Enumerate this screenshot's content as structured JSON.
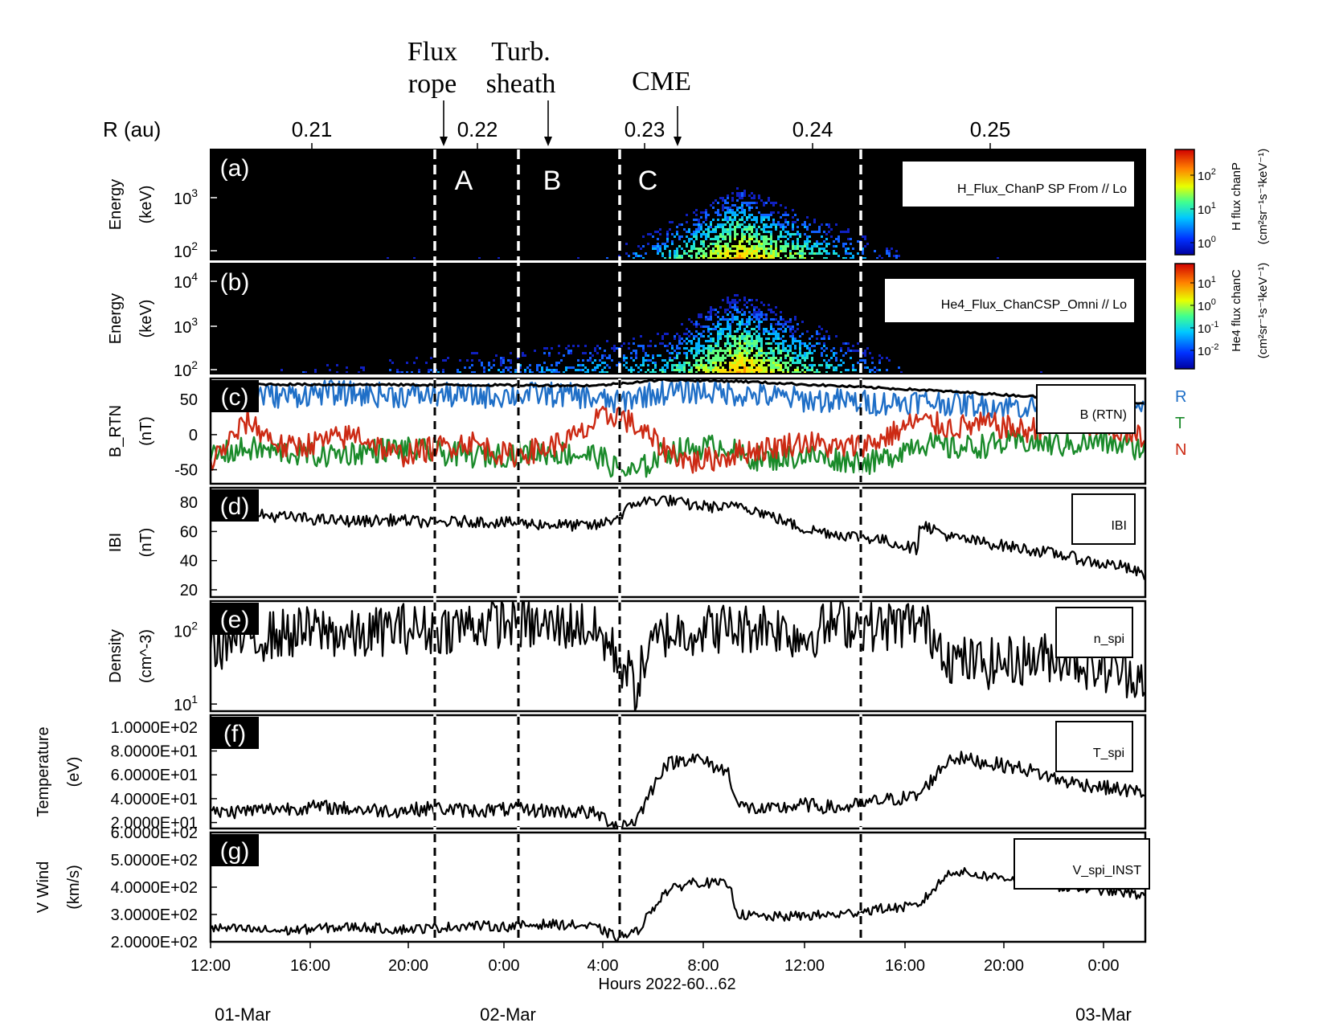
{
  "figure": {
    "r_axis_label": "R (au)",
    "r_ticks": [
      "0.21",
      "0.22",
      "0.23",
      "0.24",
      "0.25"
    ],
    "events": [
      {
        "label": [
          "Flux",
          "rope"
        ],
        "hour": 22.3
      },
      {
        "label": [
          "Turb.",
          "sheath"
        ],
        "hour": 25.3
      },
      {
        "label": [
          "CME"
        ],
        "hour": 30.0
      }
    ],
    "boundaries_hours": [
      20.9,
      24.5,
      28.5,
      38.2
    ],
    "regions": [
      {
        "label": "A",
        "hour": 22.1
      },
      {
        "label": "B",
        "hour": 25.0
      },
      {
        "label": "C",
        "hour": 28.8
      }
    ],
    "x_ticks": [
      "12:00",
      "16:00",
      "20:00",
      "0:00",
      "4:00",
      "8:00",
      "12:00",
      "16:00",
      "20:00",
      "0:00"
    ],
    "x_label": "Hours 2022-60...62",
    "dates": [
      "01-Mar",
      "02-Mar",
      "03-Mar"
    ],
    "panels": {
      "a": {
        "tag": "(a)",
        "ylabel": [
          "Energy",
          "(keV)"
        ],
        "legend": "H_Flux_ChanP SP From // Lo",
        "colorbar_label": "H flux chanP",
        "colorbar_units": "(cm²sr⁻¹s⁻¹keV⁻¹)",
        "y_ticks": [
          "10",
          "10"
        ],
        "y_exps": [
          "3",
          "2"
        ],
        "cb_ticks": [
          "10",
          "10",
          "10"
        ],
        "cb_exps": [
          "2",
          "1",
          "0"
        ]
      },
      "b": {
        "tag": "(b)",
        "ylabel": [
          "Energy",
          "(keV)"
        ],
        "legend": "He4_Flux_ChanCSP_Omni // Lo",
        "colorbar_label": "He4 flux chanC",
        "colorbar_units": "(cm²sr⁻¹s⁻¹keV⁻¹)",
        "y_ticks": [
          "10",
          "10",
          "10"
        ],
        "y_exps": [
          "4",
          "3",
          "2"
        ],
        "cb_ticks": [
          "10",
          "10",
          "10",
          "10"
        ],
        "cb_exps": [
          "1",
          "0",
          "-1",
          "-2"
        ]
      },
      "c": {
        "tag": "(c)",
        "ylabel": [
          "B_RTN",
          "(nT)"
        ],
        "legend": "B (RTN)",
        "y_ticks": [
          "50",
          "0",
          "-50"
        ],
        "components": [
          "R",
          "T",
          "N"
        ]
      },
      "d": {
        "tag": "(d)",
        "ylabel": [
          "IBI",
          "(nT)"
        ],
        "legend": "IBI",
        "y_ticks": [
          "80",
          "60",
          "40",
          "20"
        ]
      },
      "e": {
        "tag": "(e)",
        "ylabel": [
          "Density",
          "(cm^-3)"
        ],
        "legend": "n_spi",
        "y_ticks": [
          "10",
          "10"
        ],
        "y_exps": [
          "2",
          "1"
        ]
      },
      "f": {
        "tag": "(f)",
        "ylabel": [
          "Temperature",
          "(eV)"
        ],
        "legend": "T_spi",
        "y_ticks": [
          "1.0000E+02",
          "8.0000E+01",
          "6.0000E+01",
          "4.0000E+01",
          "2.0000E+01"
        ]
      },
      "g": {
        "tag": "(g)",
        "ylabel": [
          "V Wind",
          "(km/s)"
        ],
        "legend": "V_spi_INST",
        "y_ticks": [
          "6.0000E+02",
          "5.0000E+02",
          "4.0000E+02",
          "3.0000E+02",
          "2.0000E+02"
        ]
      }
    },
    "colors": {
      "R": "#1f6fc7",
      "T": "#1a8a2a",
      "N": "#cc2a14"
    }
  },
  "chart_data": [
    {
      "type": "heatmap",
      "panel": "a",
      "ylabel": "Energy (keV)",
      "colorbar": "H flux chanP",
      "description_points_hours": [
        0,
        20.9,
        24.5,
        28.5,
        38.2,
        50.5
      ],
      "relative_intensity": [
        0.0,
        0.05,
        0.45,
        0.9,
        0.05,
        0.0
      ]
    },
    {
      "type": "heatmap",
      "panel": "b",
      "ylabel": "Energy (keV)",
      "colorbar": "He4 flux chanC",
      "description_points_hours": [
        0,
        20.9,
        24.5,
        28.5,
        38.2,
        50.5
      ],
      "relative_intensity": [
        0.0,
        0.35,
        0.45,
        0.9,
        0.05,
        0.0
      ]
    },
    {
      "type": "line",
      "panel": "c",
      "ylabel": "B_RTN (nT)",
      "ylim": [
        -70,
        80
      ],
      "x_hours": [
        0,
        2,
        4,
        6,
        8,
        10,
        12,
        14,
        16,
        18,
        20,
        20.9,
        22,
        23,
        24.5,
        26,
        28,
        28.5,
        30,
        32,
        34,
        36,
        38.2,
        40,
        42,
        44,
        46,
        48,
        50.5
      ],
      "series": [
        {
          "name": "R",
          "values": [
            55,
            58,
            55,
            60,
            58,
            56,
            57,
            55,
            56,
            58,
            55,
            50,
            45,
            55,
            60,
            62,
            60,
            58,
            55,
            50,
            48,
            45,
            48,
            45,
            42,
            40,
            38,
            38,
            35
          ]
        },
        {
          "name": "T",
          "values": [
            -30,
            -20,
            -25,
            -30,
            -25,
            -20,
            -25,
            -30,
            -28,
            -25,
            -28,
            -30,
            -50,
            -55,
            -25,
            -20,
            -15,
            -30,
            -35,
            -30,
            -35,
            -40,
            -10,
            -20,
            -15,
            -10,
            -15,
            -10,
            -20
          ]
        },
        {
          "name": "N",
          "values": [
            -40,
            20,
            -20,
            -10,
            0,
            -30,
            -20,
            -10,
            -30,
            -20,
            0,
            20,
            30,
            10,
            -20,
            -40,
            -30,
            -25,
            -20,
            -10,
            -20,
            -10,
            20,
            10,
            15,
            5,
            20,
            10,
            -5
          ]
        }
      ]
    },
    {
      "type": "line",
      "panel": "d",
      "ylabel": "IBI (nT)",
      "ylim": [
        15,
        90
      ],
      "x_hours": [
        0,
        2,
        4,
        6,
        8,
        10,
        12,
        14,
        16,
        18,
        20,
        20.9,
        22,
        23,
        24.5,
        26,
        28,
        28.5,
        30,
        32,
        34,
        36,
        38.2,
        38.3,
        40,
        42,
        44,
        46,
        48,
        49,
        50.5
      ],
      "series": [
        {
          "name": "IBI",
          "values": [
            74,
            72,
            70,
            68,
            67,
            68,
            66,
            67,
            66,
            65,
            64,
            64,
            70,
            80,
            82,
            78,
            76,
            79,
            72,
            62,
            58,
            55,
            48,
            66,
            56,
            52,
            48,
            44,
            38,
            37,
            30
          ]
        }
      ]
    },
    {
      "type": "line",
      "panel": "e",
      "ylabel": "Density (cm^-3)",
      "log": true,
      "ylim": [
        8,
        250
      ],
      "x_hours": [
        0,
        2,
        4,
        6,
        8,
        10,
        12,
        14,
        16,
        18,
        20,
        20.9,
        22,
        23,
        24.5,
        26,
        28,
        28.5,
        30,
        32,
        34,
        36,
        38.2,
        40,
        42,
        44,
        46,
        48,
        50.5
      ],
      "series": [
        {
          "name": "n_spi",
          "values": [
            60,
            80,
            90,
            100,
            80,
            110,
            100,
            120,
            130,
            110,
            120,
            90,
            40,
            15,
            90,
            100,
            110,
            100,
            120,
            80,
            130,
            110,
            130,
            40,
            35,
            40,
            45,
            30,
            25
          ]
        }
      ]
    },
    {
      "type": "line",
      "panel": "f",
      "ylabel": "Temperature (eV)",
      "ylim": [
        15,
        110
      ],
      "x_hours": [
        0,
        2,
        4,
        6,
        8,
        10,
        12,
        14,
        16,
        18,
        20,
        20.9,
        22,
        23,
        24.5,
        26,
        28,
        28.5,
        30,
        32,
        34,
        36,
        38.2,
        40,
        42,
        44,
        46,
        48,
        50.5
      ],
      "series": [
        {
          "name": "T_spi",
          "values": [
            28,
            30,
            32,
            33,
            31,
            30,
            32,
            30,
            31,
            30,
            29,
            27,
            17,
            22,
            68,
            75,
            62,
            34,
            30,
            35,
            32,
            38,
            42,
            75,
            70,
            65,
            55,
            50,
            45
          ]
        }
      ]
    },
    {
      "type": "line",
      "panel": "g",
      "ylabel": "V Wind (km/s)",
      "ylim": [
        200,
        600
      ],
      "x_hours": [
        0,
        2,
        4,
        6,
        8,
        10,
        12,
        14,
        16,
        18,
        20,
        20.9,
        22,
        23,
        24.5,
        26,
        28,
        28.5,
        30,
        32,
        34,
        36,
        38.2,
        40,
        42,
        44,
        46,
        48,
        50.5
      ],
      "series": [
        {
          "name": "V_spi_INST",
          "values": [
            250,
            245,
            240,
            250,
            255,
            245,
            250,
            260,
            255,
            265,
            260,
            250,
            215,
            235,
            380,
            420,
            410,
            300,
            290,
            295,
            300,
            320,
            330,
            460,
            440,
            430,
            400,
            390,
            370
          ]
        }
      ]
    }
  ]
}
